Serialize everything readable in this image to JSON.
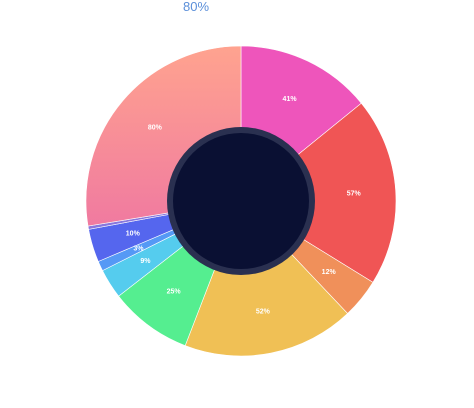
{
  "chart_data": {
    "type": "pie",
    "variant": "donut",
    "title": "80%",
    "labels": [
      "41%",
      "57%",
      "12%",
      "52%",
      "25%",
      "9%",
      "3%",
      "10%",
      "",
      "80%"
    ],
    "values": [
      41,
      57,
      12,
      52,
      25,
      9,
      3,
      10,
      1,
      80
    ],
    "colors": [
      "#ee55bb",
      "#f05555",
      "#f0905a",
      "#f0c055",
      "#55ee90",
      "#55ccee",
      "#5599f5",
      "#5566ee",
      "#8877dd",
      "#f57f9a"
    ],
    "center_color": "#0a1033",
    "ring_color": "#2a3050"
  }
}
